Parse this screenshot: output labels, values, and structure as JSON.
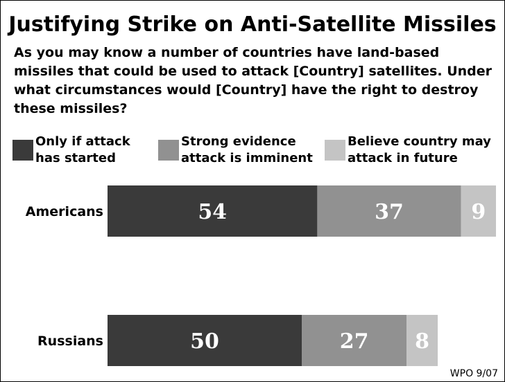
{
  "title": "Justifying Strike on Anti-Satellite Missiles",
  "question": "As you may know a number of countries have land-based missiles that could be used to attack [Country] satellites. Under what circumstances would [Country] have the right to destroy these missiles?",
  "footer": "WPO 9/07",
  "legend": [
    {
      "label_line1": "Only if attack",
      "label_line2": "has started",
      "color": "#3a3a3a"
    },
    {
      "label_line1": "Strong evidence",
      "label_line2": "attack is imminent",
      "color": "#919191"
    },
    {
      "label_line1": "Believe country may",
      "label_line2": "attack in future",
      "color": "#c4c4c4"
    }
  ],
  "chart_data": {
    "type": "bar",
    "orientation": "horizontal",
    "stacked": true,
    "categories": [
      "Americans",
      "Russians"
    ],
    "series": [
      {
        "name": "Only if attack has started",
        "values": [
          54,
          50
        ],
        "color": "#3a3a3a"
      },
      {
        "name": "Strong evidence attack is imminent",
        "values": [
          37,
          27
        ],
        "color": "#919191"
      },
      {
        "name": "Believe country may attack in future",
        "values": [
          9,
          8
        ],
        "color": "#c4c4c4"
      }
    ],
    "xlim": [
      0,
      100
    ],
    "grid": false,
    "legend_position": "top"
  }
}
